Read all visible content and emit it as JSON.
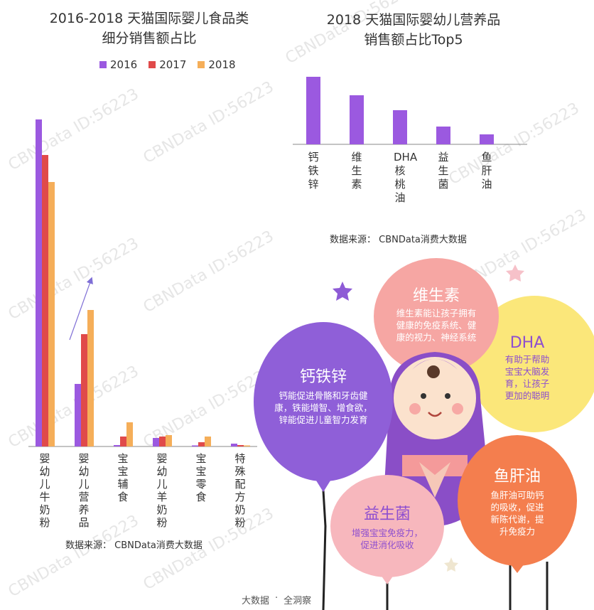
{
  "watermark": "CBNData ID:56223",
  "chart_data": [
    {
      "type": "bar",
      "title_line1": "2016-2018 天猫国际婴儿食品类",
      "title_line2": "细分销售额占比",
      "categories": [
        "婴幼儿牛奶粉",
        "婴幼儿营养品",
        "宝宝辅食",
        "婴幼儿羊奶粉",
        "宝宝零食",
        "特殊配方奶粉"
      ],
      "series": [
        {
          "name": "2016",
          "color": "#9b59e0",
          "values": [
            46,
            8.8,
            0.2,
            1.2,
            0.15,
            0.4
          ]
        },
        {
          "name": "2017",
          "color": "#e04a4a",
          "values": [
            41,
            15.8,
            1.4,
            1.4,
            0.6,
            0.2
          ]
        },
        {
          "name": "2018",
          "color": "#f5ae59",
          "values": [
            37.2,
            19.2,
            3.4,
            1.6,
            1.4,
            0.15
          ]
        }
      ],
      "ylim": [
        0,
        48
      ],
      "source": "数据来源： CBNData消费大数据"
    },
    {
      "type": "bar",
      "title_line1": "2018 天猫国际婴幼儿营养品",
      "title_line2": "销售额占比Top5",
      "categories": [
        "钙铁锌",
        "维生素",
        "DHA核桃油",
        "益生菌",
        "鱼肝油"
      ],
      "series": [
        {
          "color": "#9b59e0",
          "values": [
            95,
            69,
            48,
            25,
            14
          ]
        }
      ],
      "ylim": [
        0,
        100
      ],
      "source": "数据来源： CBNData消费大数据"
    }
  ],
  "balloons": [
    {
      "title": "钙铁锌",
      "lines": [
        "钙能促进骨骼和牙齿健",
        "康，铁能增智、增食欲，",
        "锌能促进儿童智力发育"
      ]
    },
    {
      "title": "维生素",
      "lines": [
        "维生素能让孩子拥有",
        "健康的免疫系统、健",
        "康的视力、神经系统"
      ]
    },
    {
      "title": "DHA",
      "lines": [
        "有助于帮助",
        "宝宝大脑发",
        "育，让孩子",
        "更加的聪明"
      ]
    },
    {
      "title": "益生菌",
      "lines": [
        "增强宝宝免疫力，",
        "促进消化吸收"
      ]
    },
    {
      "title": "鱼肝油",
      "lines": [
        "鱼肝油可助钙",
        "的吸收，促进",
        "新陈代谢，提",
        "升免疫力"
      ]
    }
  ],
  "footer": {
    "left": "大数据",
    "dot": "·",
    "right": "全洞察"
  }
}
